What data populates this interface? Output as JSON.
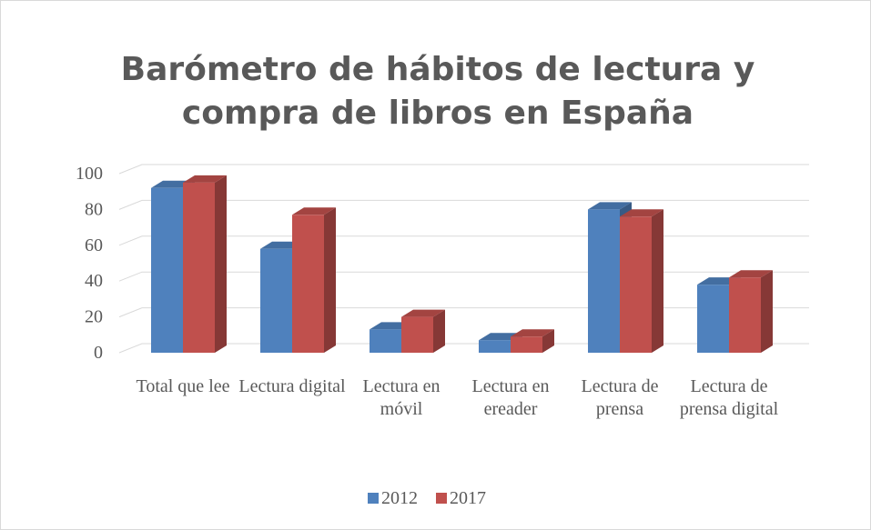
{
  "chart_data": {
    "type": "bar3d",
    "title": "Barómetro de hábitos de lectura y compra de libros en España",
    "categories": [
      "Total que lee",
      "Lectura digital",
      "Lectura en móvil",
      "Lectura en ereader",
      "Lectura de prensa",
      "Lectura de prensa digital"
    ],
    "series": [
      {
        "name": "2012",
        "color": "#4f81bd",
        "values": [
          92,
          58,
          13,
          7,
          80,
          38
        ]
      },
      {
        "name": "2017",
        "color": "#c0504d",
        "values": [
          95,
          77,
          20,
          9,
          76,
          42
        ]
      }
    ],
    "ylim": [
      0,
      100
    ],
    "yticks": [
      0,
      20,
      40,
      60,
      80,
      100
    ],
    "grid": true,
    "legend": "bottom"
  }
}
